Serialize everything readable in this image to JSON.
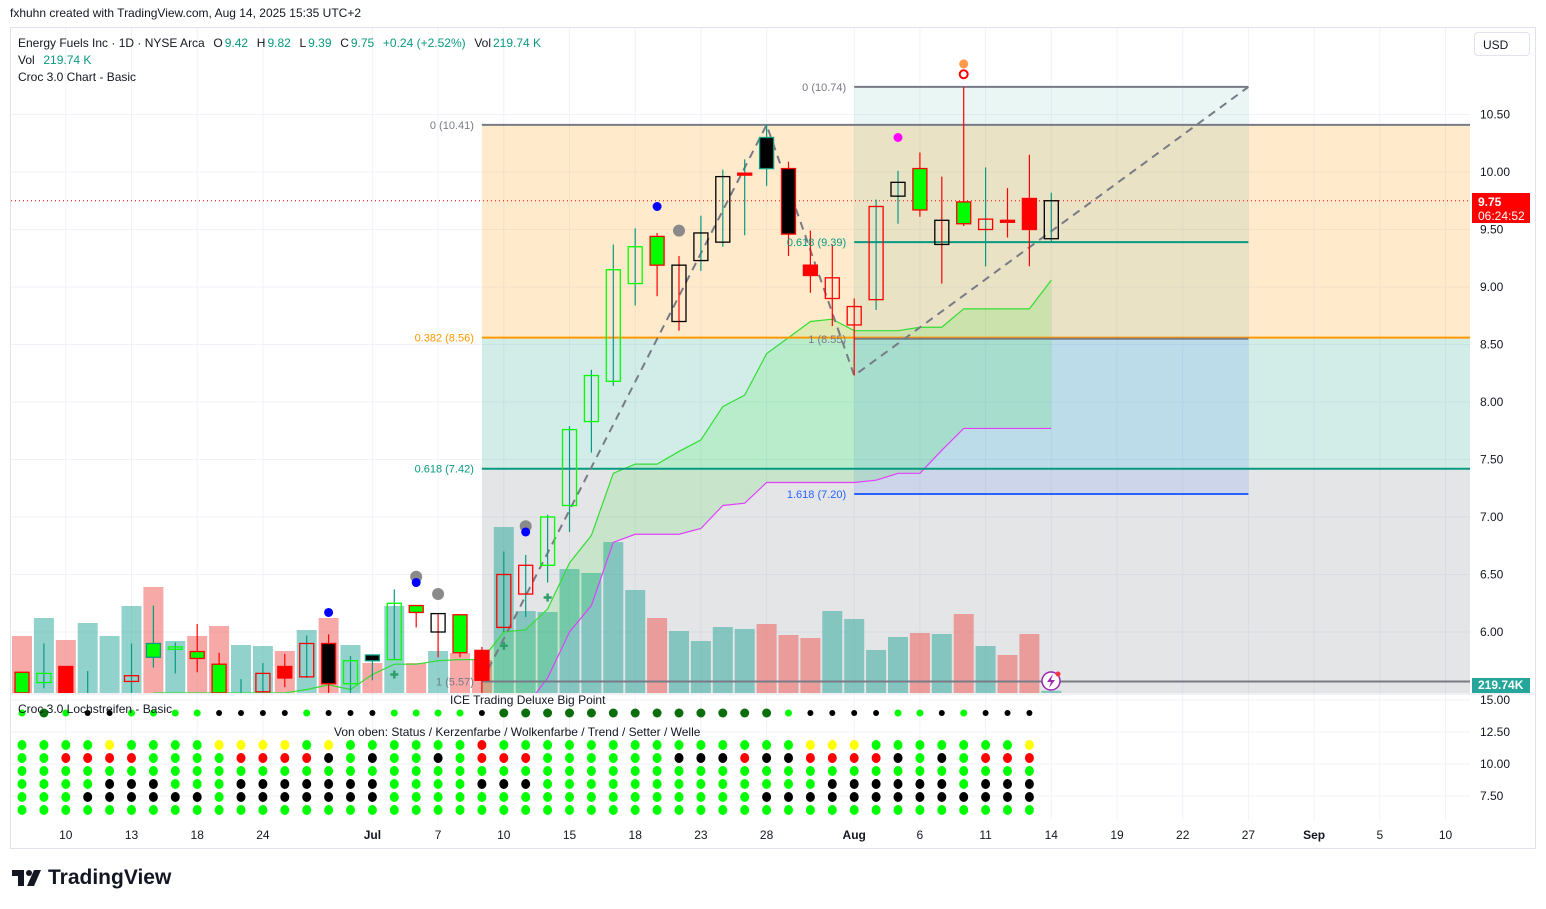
{
  "credit": "fxhuhn created with TradingView.com, Aug 14, 2025 15:35 UTC+2",
  "legend": {
    "symbol": "Energy Fuels Inc · 1D · NYSE Arca",
    "o_label": "O",
    "o": "9.42",
    "h_label": "H",
    "h": "9.82",
    "l_label": "L",
    "l": "9.39",
    "c_label": "C",
    "c": "9.75",
    "change": "+0.24 (+2.52%)",
    "vol_label": "Vol",
    "vol": "219.74 K",
    "vol_row_label": "Vol",
    "vol_row": "219.74 K",
    "indicator": "Croc 3.0 Chart - Basic"
  },
  "price_axis": {
    "currency": "USD",
    "last_price": "9.75",
    "countdown": "06:24:52",
    "volume_label": "219.74K",
    "ticks": [
      "10.50",
      "10.00",
      "9.50",
      "9.00",
      "8.50",
      "8.00",
      "7.50",
      "7.00",
      "6.50",
      "6.00"
    ],
    "lower_ticks": [
      "15.00",
      "12.50",
      "10.00",
      "7.50"
    ]
  },
  "lower_pane": {
    "title": "Croc 3.0 Lochstreifen - Basic",
    "subtitle": "ICE Trading Deluxe Big Point",
    "rows_caption": "Von oben: Status / Kerzenfarbe / Wolkenfarbe / Trend / Setter / Welle"
  },
  "x_axis": [
    {
      "label": "10",
      "i": 2,
      "bold": false
    },
    {
      "label": "13",
      "i": 5,
      "bold": false
    },
    {
      "label": "18",
      "i": 8,
      "bold": false
    },
    {
      "label": "24",
      "i": 11,
      "bold": false
    },
    {
      "label": "Jul",
      "i": 16,
      "bold": true
    },
    {
      "label": "7",
      "i": 19,
      "bold": false
    },
    {
      "label": "10",
      "i": 22,
      "bold": false
    },
    {
      "label": "15",
      "i": 25,
      "bold": false
    },
    {
      "label": "18",
      "i": 28,
      "bold": false
    },
    {
      "label": "23",
      "i": 31,
      "bold": false
    },
    {
      "label": "28",
      "i": 34,
      "bold": false
    },
    {
      "label": "Aug",
      "i": 38,
      "bold": true
    },
    {
      "label": "6",
      "i": 41,
      "bold": false
    },
    {
      "label": "11",
      "i": 44,
      "bold": false
    },
    {
      "label": "14",
      "i": 47,
      "bold": false
    },
    {
      "label": "19",
      "i": 50,
      "bold": false
    },
    {
      "label": "22",
      "i": 53,
      "bold": false
    },
    {
      "label": "27",
      "i": 56,
      "bold": false
    },
    {
      "label": "Sep",
      "i": 59,
      "bold": true
    },
    {
      "label": "5",
      "i": 62,
      "bold": false
    },
    {
      "label": "10",
      "i": 65,
      "bold": false
    }
  ],
  "colors": {
    "g": "#00ff00",
    "r": "#ff0000",
    "k": "#000000",
    "t": "#089981",
    "y": "#ffff00",
    "d": "#0b6e0b",
    "vol_up": "#26a69a",
    "vol_down": "#ef5350",
    "fib_gray": "#787b86",
    "fib_orange": "#ff9800",
    "fib_teal": "#089981",
    "fib_blue": "#2962ff",
    "cloud_line": "#33dd33",
    "lower_line": "#e040fb",
    "last_price": "#ff0000"
  },
  "chart_data": {
    "type": "candlestick",
    "title": "Energy Fuels Inc · 1D · NYSE Arca",
    "ylim": [
      5.47,
      11.0
    ],
    "candles": [
      {
        "o": 5.65,
        "h": 5.65,
        "l": 5.47,
        "c": 5.47,
        "f": "g",
        "b": "r",
        "w": "r"
      },
      {
        "o": 5.56,
        "h": 5.9,
        "l": 5.51,
        "c": 5.64,
        "f": "n",
        "b": "g",
        "w": "t"
      },
      {
        "o": 5.7,
        "h": 5.7,
        "l": 5.47,
        "c": 5.47,
        "f": "r",
        "b": "r",
        "w": "r"
      },
      {
        "o": 5.47,
        "h": 5.66,
        "l": 5.47,
        "c": 5.47,
        "f": "n",
        "b": "n",
        "w": "t"
      },
      null,
      {
        "o": 5.62,
        "h": 5.9,
        "l": 5.47,
        "c": 5.57,
        "f": "n",
        "b": "r",
        "w": "t"
      },
      {
        "o": 5.78,
        "h": 6.23,
        "l": 5.69,
        "c": 5.9,
        "f": "g",
        "b": "t",
        "w": "t"
      },
      {
        "o": 5.85,
        "h": 5.91,
        "l": 5.64,
        "c": 5.87,
        "f": "n",
        "b": "g",
        "w": "t"
      },
      {
        "o": 5.83,
        "h": 6.07,
        "l": 5.65,
        "c": 5.77,
        "f": "g",
        "b": "r",
        "w": "r"
      },
      {
        "o": 5.72,
        "h": 5.82,
        "l": 5.47,
        "c": 5.47,
        "f": "g",
        "b": "r",
        "w": "r"
      },
      {
        "o": 5.47,
        "h": 5.59,
        "l": 5.47,
        "c": 5.47,
        "f": "n",
        "b": "n",
        "w": "t"
      },
      {
        "o": 5.64,
        "h": 5.73,
        "l": 5.47,
        "c": 5.48,
        "f": "n",
        "b": "r",
        "w": "t"
      },
      {
        "o": 5.7,
        "h": 5.81,
        "l": 5.52,
        "c": 5.6,
        "f": "r",
        "b": "r",
        "w": "r"
      },
      {
        "o": 5.9,
        "h": 5.97,
        "l": 5.6,
        "c": 5.61,
        "f": "n",
        "b": "r",
        "w": "t"
      },
      {
        "o": 5.9,
        "h": 5.98,
        "l": 5.47,
        "c": 5.55,
        "f": "k",
        "b": "r",
        "w": "r"
      },
      {
        "o": 5.55,
        "h": 5.79,
        "l": 5.47,
        "c": 5.75,
        "f": "n",
        "b": "g",
        "w": "t"
      },
      {
        "o": 5.8,
        "h": 5.8,
        "l": 5.58,
        "c": 5.75,
        "f": "k",
        "b": "t",
        "w": "t"
      },
      {
        "o": 5.76,
        "h": 6.37,
        "l": 5.76,
        "c": 6.25,
        "f": "n",
        "b": "g",
        "w": "t"
      },
      {
        "o": 6.23,
        "h": 6.23,
        "l": 6.04,
        "c": 6.17,
        "f": "g",
        "b": "r",
        "w": "r"
      },
      {
        "o": 6.16,
        "h": 6.16,
        "l": 5.78,
        "c": 6.0,
        "f": "n",
        "b": "k",
        "w": "r"
      },
      {
        "o": 6.15,
        "h": 6.15,
        "l": 5.78,
        "c": 5.82,
        "f": "g",
        "b": "r",
        "w": "r"
      },
      {
        "o": 5.84,
        "h": 5.87,
        "l": 5.47,
        "c": 5.58,
        "f": "r",
        "b": "r",
        "w": "r"
      },
      {
        "o": 6.5,
        "h": 6.7,
        "l": 6.0,
        "c": 6.04,
        "f": "n",
        "b": "r",
        "w": "t"
      },
      {
        "o": 6.58,
        "h": 6.67,
        "l": 6.13,
        "c": 6.33,
        "f": "n",
        "b": "r",
        "w": "t"
      },
      {
        "o": 6.58,
        "h": 7.02,
        "l": 6.43,
        "c": 7.0,
        "f": "n",
        "b": "g",
        "w": "t"
      },
      {
        "o": 7.1,
        "h": 7.79,
        "l": 6.87,
        "c": 7.76,
        "f": "n",
        "b": "g",
        "w": "t"
      },
      {
        "o": 7.83,
        "h": 8.28,
        "l": 7.56,
        "c": 8.23,
        "f": "n",
        "b": "g",
        "w": "t"
      },
      {
        "o": 8.18,
        "h": 9.37,
        "l": 8.14,
        "c": 9.15,
        "f": "n",
        "b": "g",
        "w": "t"
      },
      {
        "o": 9.03,
        "h": 9.51,
        "l": 8.84,
        "c": 9.35,
        "f": "n",
        "b": "g",
        "w": "t"
      },
      {
        "o": 9.44,
        "h": 9.47,
        "l": 8.92,
        "c": 9.19,
        "f": "g",
        "b": "r",
        "w": "r"
      },
      {
        "o": 9.19,
        "h": 9.27,
        "l": 8.62,
        "c": 8.7,
        "f": "n",
        "b": "k",
        "w": "r"
      },
      {
        "o": 9.23,
        "h": 9.62,
        "l": 9.14,
        "c": 9.47,
        "f": "n",
        "b": "k",
        "w": "t"
      },
      {
        "o": 9.39,
        "h": 10.02,
        "l": 9.35,
        "c": 9.96,
        "f": "n",
        "b": "k",
        "w": "t"
      },
      {
        "o": 9.99,
        "h": 10.11,
        "l": 9.45,
        "c": 9.99,
        "f": "r",
        "b": "r",
        "w": "t"
      },
      {
        "o": 10.03,
        "h": 10.41,
        "l": 9.88,
        "c": 10.3,
        "f": "k",
        "b": "t",
        "w": "t"
      },
      {
        "o": 10.03,
        "h": 10.09,
        "l": 9.27,
        "c": 9.46,
        "f": "k",
        "b": "r",
        "w": "r"
      },
      {
        "o": 9.19,
        "h": 9.49,
        "l": 8.95,
        "c": 9.1,
        "f": "r",
        "b": "r",
        "w": "r"
      },
      {
        "o": 9.08,
        "h": 9.37,
        "l": 8.66,
        "c": 8.9,
        "f": "n",
        "b": "r",
        "w": "r"
      },
      {
        "o": 8.83,
        "h": 8.9,
        "l": 8.23,
        "c": 8.67,
        "f": "n",
        "b": "r",
        "w": "r"
      },
      {
        "o": 9.7,
        "h": 9.76,
        "l": 8.8,
        "c": 8.89,
        "f": "n",
        "b": "r",
        "w": "t"
      },
      {
        "o": 9.79,
        "h": 10.01,
        "l": 9.55,
        "c": 9.91,
        "f": "n",
        "b": "k",
        "w": "t"
      },
      {
        "o": 10.03,
        "h": 10.17,
        "l": 9.61,
        "c": 9.67,
        "f": "g",
        "b": "r",
        "w": "r"
      },
      {
        "o": 9.58,
        "h": 9.96,
        "l": 9.03,
        "c": 9.37,
        "f": "n",
        "b": "k",
        "w": "r"
      },
      {
        "o": 9.74,
        "h": 10.74,
        "l": 9.53,
        "c": 9.55,
        "f": "g",
        "b": "r",
        "w": "r"
      },
      {
        "o": 9.59,
        "h": 10.04,
        "l": 9.18,
        "c": 9.5,
        "f": "n",
        "b": "r",
        "w": "t"
      },
      {
        "o": 9.58,
        "h": 9.86,
        "l": 9.43,
        "c": 9.58,
        "f": "r",
        "b": "r",
        "w": "r"
      },
      {
        "o": 9.77,
        "h": 10.15,
        "l": 9.18,
        "c": 9.5,
        "f": "r",
        "b": "r",
        "w": "r"
      },
      {
        "o": 9.42,
        "h": 9.82,
        "l": 9.39,
        "c": 9.75,
        "f": "n",
        "b": "k",
        "w": "t"
      }
    ],
    "volume_m": [
      5.7,
      7.5,
      5.3,
      7.0,
      5.7,
      8.7,
      10.6,
      5.2,
      5.7,
      6.7,
      4.8,
      4.7,
      4.2,
      6.3,
      7.5,
      4.8,
      3.0,
      8.7,
      3.0,
      4.2,
      4.0,
      3.3,
      16.6,
      8.2,
      8.1,
      12.4,
      12.0,
      15.1,
      10.3,
      7.5,
      6.2,
      5.2,
      6.6,
      6.4,
      6.9,
      5.8,
      5.5,
      8.2,
      7.4,
      4.3,
      5.6,
      6.0,
      5.9,
      7.9,
      4.7,
      3.8,
      5.9,
      0.22
    ],
    "volume_dir": [
      "d",
      "u",
      "d",
      "u",
      "u",
      "u",
      "d",
      "u",
      "d",
      "d",
      "u",
      "u",
      "d",
      "u",
      "d",
      "u",
      "d",
      "u",
      "d",
      "u",
      "d",
      "d",
      "u",
      "u",
      "u",
      "u",
      "u",
      "u",
      "u",
      "d",
      "u",
      "u",
      "u",
      "u",
      "d",
      "d",
      "d",
      "u",
      "u",
      "u",
      "u",
      "d",
      "u",
      "d",
      "u",
      "d",
      "d",
      "u"
    ],
    "cloud_upper": {
      "start": 6,
      "values": [
        5.47,
        5.47,
        5.47,
        5.47,
        5.47,
        5.47,
        5.47,
        5.5,
        5.54,
        5.5,
        5.63,
        5.72,
        5.72,
        5.75,
        5.76,
        5.76,
        6.0,
        6.02,
        6.2,
        6.6,
        6.84,
        7.38,
        7.46,
        7.46,
        7.57,
        7.67,
        7.96,
        8.06,
        8.42,
        8.56,
        8.7,
        8.72,
        8.62,
        8.62,
        8.62,
        8.65,
        8.65,
        8.81,
        8.81,
        8.81,
        8.81,
        9.06
      ]
    },
    "cloud_lower": {
      "start": 21,
      "values": [
        4.9,
        5.1,
        5.35,
        5.6,
        6.0,
        6.23,
        6.78,
        6.85,
        6.85,
        6.85,
        6.9,
        7.1,
        7.12,
        7.3,
        7.3,
        7.3,
        7.3,
        7.3,
        7.32,
        7.38,
        7.38,
        7.58,
        7.77,
        7.77,
        7.77,
        7.77,
        7.77
      ]
    },
    "markers": [
      {
        "i": 14,
        "p": 6.17,
        "kind": "blue-dot"
      },
      {
        "i": 18,
        "p": 6.48,
        "kind": "gray-dot"
      },
      {
        "i": 18,
        "p": 6.43,
        "kind": "blue-dot"
      },
      {
        "i": 19,
        "p": 6.33,
        "kind": "gray-dot"
      },
      {
        "i": 23,
        "p": 6.92,
        "kind": "gray-dot"
      },
      {
        "i": 23,
        "p": 6.87,
        "kind": "blue-dot"
      },
      {
        "i": 29,
        "p": 9.7,
        "kind": "blue-dot"
      },
      {
        "i": 30,
        "p": 9.49,
        "kind": "gray-dot"
      },
      {
        "i": 40,
        "p": 10.3,
        "kind": "magenta-dot"
      },
      {
        "i": 43,
        "p": 10.94,
        "kind": "orange-dot"
      },
      {
        "i": 43,
        "p": 10.85,
        "kind": "red-ring"
      },
      {
        "i": 17,
        "p": 5.63,
        "kind": "green-plus"
      },
      {
        "i": 22,
        "p": 5.88,
        "kind": "green-plus"
      },
      {
        "i": 24,
        "p": 6.3,
        "kind": "green-plus"
      }
    ],
    "zigzag": [
      {
        "i": 21,
        "p": 5.57
      },
      {
        "i": 34,
        "p": 10.41
      },
      {
        "i": 38,
        "p": 8.23
      },
      {
        "i": 56,
        "p": 10.74
      }
    ],
    "fib_retracement": {
      "start": 21,
      "extend_right": true,
      "levels": [
        {
          "ratio": 0,
          "price": 10.41,
          "label": "0 (10.41)",
          "color": "fib_gray"
        },
        {
          "ratio": 0.382,
          "price": 8.56,
          "label": "0.382 (8.56)",
          "color": "fib_orange"
        },
        {
          "ratio": 0.618,
          "price": 7.42,
          "label": "0.618 (7.42)",
          "color": "fib_teal"
        },
        {
          "ratio": 1,
          "price": 5.57,
          "label": "1 (5.57)",
          "color": "fib_gray"
        }
      ]
    },
    "fib_extension": {
      "start": 38,
      "end": 56,
      "levels": [
        {
          "ratio": 0,
          "price": 10.74,
          "label": "0 (10.74)",
          "color": "fib_gray"
        },
        {
          "ratio": 0.618,
          "price": 9.39,
          "label": "0.618 (9.39)",
          "color": "fib_teal"
        },
        {
          "ratio": 1,
          "price": 8.55,
          "label": "1 (8.55)",
          "color": "fib_gray"
        },
        {
          "ratio": 1.618,
          "price": 7.2,
          "label": "1.618 (7.20)",
          "color": "fib_blue"
        }
      ]
    },
    "last_price": 9.75,
    "dot_rows": {
      "big_point": [
        "g",
        "d",
        "g",
        "k",
        "k",
        "g",
        "g",
        "g",
        "g",
        "k",
        "k",
        "k",
        "k",
        "g",
        "k",
        "k",
        "k",
        "g",
        "g",
        "g",
        "g",
        "k",
        "d",
        "d",
        "d",
        "d",
        "d",
        "d",
        "d",
        "d",
        "d",
        "d",
        "d",
        "d",
        "d",
        "g",
        "k",
        "k",
        "k",
        "k",
        "g",
        "g",
        "k",
        "g",
        "k",
        "k",
        "k"
      ],
      "status": [
        "g",
        "g",
        "g",
        "g",
        "y",
        "g",
        "g",
        "g",
        "g",
        "y",
        "y",
        "y",
        "y",
        "g",
        "y",
        "g",
        "g",
        "g",
        "g",
        "g",
        "g",
        "r",
        "g",
        "g",
        "g",
        "g",
        "g",
        "g",
        "g",
        "g",
        "g",
        "g",
        "g",
        "g",
        "g",
        "g",
        "y",
        "y",
        "y",
        "g",
        "g",
        "g",
        "g",
        "g",
        "g",
        "g",
        "y"
      ],
      "candle": [
        "g",
        "g",
        "r",
        "r",
        "r",
        "r",
        "g",
        "g",
        "g",
        "g",
        "r",
        "r",
        "r",
        "r",
        "k",
        "g",
        "k",
        "g",
        "g",
        "k",
        "g",
        "r",
        "r",
        "r",
        "g",
        "g",
        "g",
        "g",
        "g",
        "g",
        "k",
        "k",
        "k",
        "r",
        "k",
        "k",
        "r",
        "r",
        "r",
        "r",
        "k",
        "g",
        "k",
        "g",
        "r",
        "r",
        "r"
      ],
      "cloud": [
        "g",
        "g",
        "g",
        "g",
        "g",
        "g",
        "g",
        "g",
        "g",
        "g",
        "g",
        "g",
        "g",
        "g",
        "g",
        "g",
        "g",
        "g",
        "g",
        "g",
        "g",
        "g",
        "g",
        "g",
        "g",
        "g",
        "g",
        "g",
        "g",
        "g",
        "g",
        "g",
        "g",
        "g",
        "g",
        "g",
        "g",
        "g",
        "g",
        "g",
        "g",
        "g",
        "g",
        "g",
        "g",
        "g",
        "g"
      ],
      "trend": [
        "g",
        "g",
        "g",
        "g",
        "k",
        "k",
        "k",
        "g",
        "g",
        "g",
        "k",
        "k",
        "k",
        "k",
        "k",
        "k",
        "k",
        "g",
        "g",
        "g",
        "g",
        "k",
        "k",
        "k",
        "g",
        "g",
        "g",
        "g",
        "g",
        "g",
        "g",
        "g",
        "g",
        "g",
        "g",
        "g",
        "g",
        "k",
        "k",
        "k",
        "k",
        "k",
        "k",
        "g",
        "k",
        "k",
        "k"
      ],
      "setter": [
        "g",
        "g",
        "g",
        "k",
        "k",
        "k",
        "k",
        "k",
        "k",
        "g",
        "k",
        "k",
        "k",
        "k",
        "k",
        "k",
        "k",
        "g",
        "g",
        "g",
        "g",
        "g",
        "g",
        "g",
        "g",
        "g",
        "g",
        "g",
        "g",
        "g",
        "g",
        "g",
        "g",
        "g",
        "k",
        "k",
        "k",
        "k",
        "k",
        "k",
        "k",
        "k",
        "k",
        "k",
        "k",
        "k",
        "k"
      ],
      "wave": [
        "g",
        "g",
        "g",
        "g",
        "g",
        "g",
        "g",
        "g",
        "g",
        "g",
        "g",
        "g",
        "g",
        "g",
        "g",
        "g",
        "g",
        "g",
        "g",
        "g",
        "g",
        "g",
        "g",
        "g",
        "g",
        "g",
        "g",
        "g",
        "g",
        "g",
        "g",
        "g",
        "g",
        "g",
        "g",
        "g",
        "g",
        "g",
        "g",
        "g",
        "g",
        "g",
        "g",
        "g",
        "g",
        "g",
        "g"
      ]
    }
  },
  "branding": {
    "logo_text": "TradingView"
  }
}
